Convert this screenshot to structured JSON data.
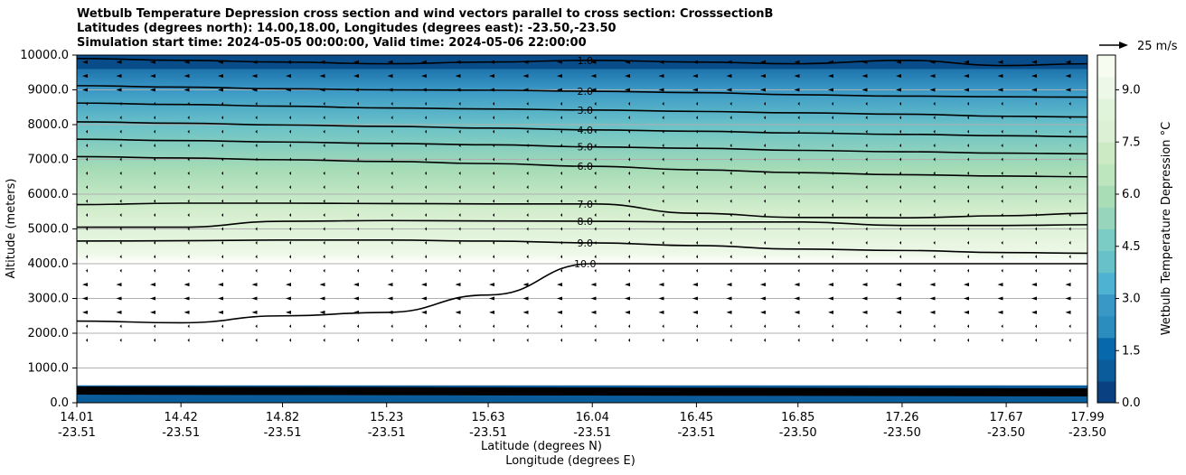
{
  "title_lines": [
    "Wetbulb Temperature Depression cross section and wind vectors parallel to cross section: CrosssectionB",
    "Latitudes (degrees north): 14.00,18.00, Longitudes (degrees east): -23.50,-23.50",
    "Simulation start time: 2024-05-05 00:00:00, Valid time: 2024-05-06 22:00:00"
  ],
  "chart_data": {
    "type": "contour",
    "title": "Wetbulb Temperature Depression cross section and wind vectors parallel to cross section: CrosssectionB",
    "xlabel_lat": "Latitude (degrees N)",
    "xlabel_lon": "Longitude (degrees E)",
    "ylabel": "Altitude (meters)",
    "ylim": [
      0,
      10000
    ],
    "y_ticks": [
      "0.0",
      "1000.0",
      "2000.0",
      "3000.0",
      "4000.0",
      "5000.0",
      "6000.0",
      "7000.0",
      "8000.0",
      "9000.0",
      "10000.0"
    ],
    "y_tick_values": [
      0,
      1000,
      2000,
      3000,
      4000,
      5000,
      6000,
      7000,
      8000,
      9000,
      10000
    ],
    "x_tick_lat": [
      "14.01",
      "14.42",
      "14.82",
      "15.23",
      "15.63",
      "16.04",
      "16.45",
      "16.85",
      "17.26",
      "17.67",
      "17.99"
    ],
    "x_tick_lon": [
      "-23.51",
      "-23.51",
      "-23.51",
      "-23.51",
      "-23.51",
      "-23.51",
      "-23.51",
      "-23.50",
      "-23.50",
      "-23.50",
      "-23.50"
    ],
    "x_tick_values": [
      14.01,
      14.42,
      14.82,
      15.23,
      15.63,
      16.04,
      16.45,
      16.85,
      17.26,
      17.67,
      17.99
    ],
    "xlim": [
      14.01,
      17.99
    ],
    "grid": "horizontal",
    "colorbar": {
      "label": "Wetbulb Temperature Depression °C",
      "range": [
        0,
        10
      ],
      "ticks": [
        "0.0",
        "1.5",
        "3.0",
        "4.5",
        "6.0",
        "7.5",
        "9.0"
      ],
      "tick_values": [
        0,
        1.5,
        3,
        4.5,
        6,
        7.5,
        9
      ],
      "colormap": "GnBu_r"
    },
    "contour_levels": [
      {
        "label": "1.0",
        "altitudes": [
          9900,
          9850,
          9800,
          9750,
          9800,
          9850,
          9800,
          9750,
          9850,
          9700,
          9750
        ]
      },
      {
        "label": "2.0",
        "altitudes": [
          9120,
          9080,
          9030,
          9000,
          8990,
          8960,
          8920,
          8860,
          8820,
          8800,
          8790
        ]
      },
      {
        "label": "3.0",
        "altitudes": [
          8620,
          8580,
          8530,
          8480,
          8450,
          8420,
          8380,
          8340,
          8300,
          8240,
          8220
        ]
      },
      {
        "label": "4.0",
        "altitudes": [
          8080,
          8040,
          7990,
          7950,
          7900,
          7850,
          7810,
          7760,
          7720,
          7680,
          7650
        ]
      },
      {
        "label": "5.0",
        "altitudes": [
          7580,
          7540,
          7500,
          7460,
          7420,
          7360,
          7320,
          7260,
          7220,
          7180,
          7160
        ]
      },
      {
        "label": "6.0",
        "altitudes": [
          7080,
          7040,
          6990,
          6940,
          6880,
          6800,
          6700,
          6620,
          6560,
          6520,
          6500
        ]
      },
      {
        "label": "7.0",
        "altitudes": [
          5700,
          5740,
          5740,
          5730,
          5720,
          5720,
          5450,
          5330,
          5320,
          5380,
          5450
        ]
      },
      {
        "label": "8.0",
        "altitudes": [
          5050,
          5050,
          5220,
          5240,
          5230,
          5220,
          5200,
          5200,
          5100,
          5100,
          5120
        ]
      },
      {
        "label": "9.0",
        "altitudes": [
          4650,
          4660,
          4680,
          4680,
          4650,
          4600,
          4520,
          4420,
          4380,
          4320,
          4300
        ]
      },
      {
        "label": "10.0",
        "altitudes": [
          2350,
          2300,
          2500,
          2600,
          3100,
          4000,
          4000,
          4000,
          4000,
          4000,
          4000
        ]
      }
    ],
    "wind_key": {
      "label": "25 m/s",
      "speed": 25
    },
    "wind_vectors": "mostly northerly-to-southerly flow shown as small arrows pointing left; strongest (longer arrows) near 9000-10000 m and near 3000 m"
  }
}
